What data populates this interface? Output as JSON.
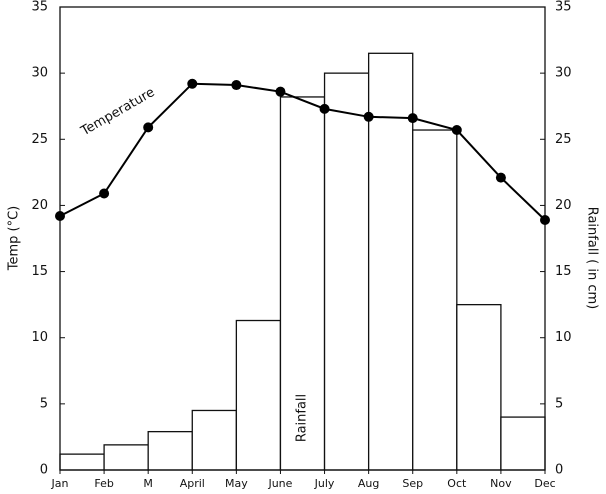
{
  "chart_data": {
    "type": "climograph",
    "categories": [
      "Jan",
      "Feb",
      "M",
      "April",
      "May",
      "June",
      "July",
      "Aug",
      "Sep",
      "Oct",
      "Nov",
      "Dec"
    ],
    "series": [
      {
        "name": "Temperature",
        "type": "line",
        "color": "#000000",
        "values": [
          19.2,
          20.9,
          25.9,
          29.2,
          29.1,
          28.6,
          27.3,
          26.7,
          26.6,
          25.7,
          22.1,
          18.9
        ]
      },
      {
        "name": "Rainfall",
        "type": "bar",
        "axis": "y2",
        "color": "#ffffff",
        "values": [
          1.2,
          1.9,
          2.9,
          4.5,
          11.3,
          28.2,
          30,
          31.5,
          25.7,
          12.5,
          4,
          null
        ]
      }
    ],
    "y_label": "Temp (°C)",
    "y2_label": "Rainfall ( in cm)",
    "ylim": [
      0,
      35
    ],
    "yticks": [
      0,
      5,
      10,
      15,
      20,
      25,
      30,
      35
    ],
    "y2lim": [
      0,
      35
    ],
    "y2ticks": [
      0,
      5,
      10,
      15,
      20,
      25,
      30,
      35
    ]
  }
}
